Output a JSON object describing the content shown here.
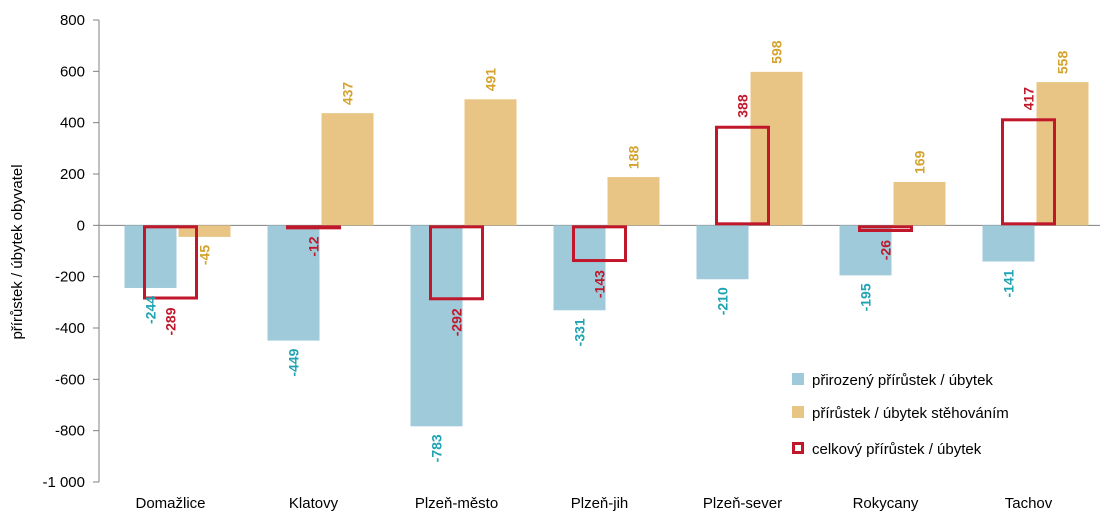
{
  "chart_data": {
    "type": "bar",
    "ylabel": "přírůstek / úbytek obyvatel",
    "ylim": [
      -1000,
      800
    ],
    "yticks": [
      -1000,
      -800,
      -600,
      -400,
      -200,
      0,
      200,
      400,
      600,
      800
    ],
    "ytick_labels": [
      "-1 000",
      "-800",
      "-600",
      "-400",
      "-200",
      "0",
      "200",
      "400",
      "600",
      "800"
    ],
    "categories": [
      "Domažlice",
      "Klatovy",
      "Plzeň-město",
      "Plzeň-jih",
      "Plzeň-sever",
      "Rokycany",
      "Tachov"
    ],
    "series": [
      {
        "name": "přirozený přírůstek / úbytek",
        "style": "bar",
        "color": "#9fcad9",
        "label_color": "#1fa3b3",
        "values": [
          -244,
          -449,
          -783,
          -331,
          -210,
          -195,
          -141
        ]
      },
      {
        "name": "přírůstek / úbytek stěhováním",
        "style": "bar",
        "color": "#e8c584",
        "label_color": "#d4a32e",
        "values": [
          -45,
          437,
          491,
          188,
          598,
          169,
          558
        ]
      },
      {
        "name": "celkový přírůstek / úbytek",
        "style": "outline",
        "color": "#c0172b",
        "label_color": "#c0172b",
        "values": [
          -289,
          -12,
          -292,
          -143,
          388,
          -26,
          417
        ]
      }
    ],
    "value_labels": [
      [
        "-244",
        "-449",
        "-783",
        "-331",
        "-210",
        "-195",
        "-141"
      ],
      [
        "-45",
        "437",
        "491",
        "188",
        "598",
        "169",
        "558"
      ],
      [
        "-289",
        "-12",
        "-292",
        "-143",
        "388",
        "-26",
        "417"
      ]
    ],
    "grid": false,
    "legend_position": "bottom-right"
  }
}
